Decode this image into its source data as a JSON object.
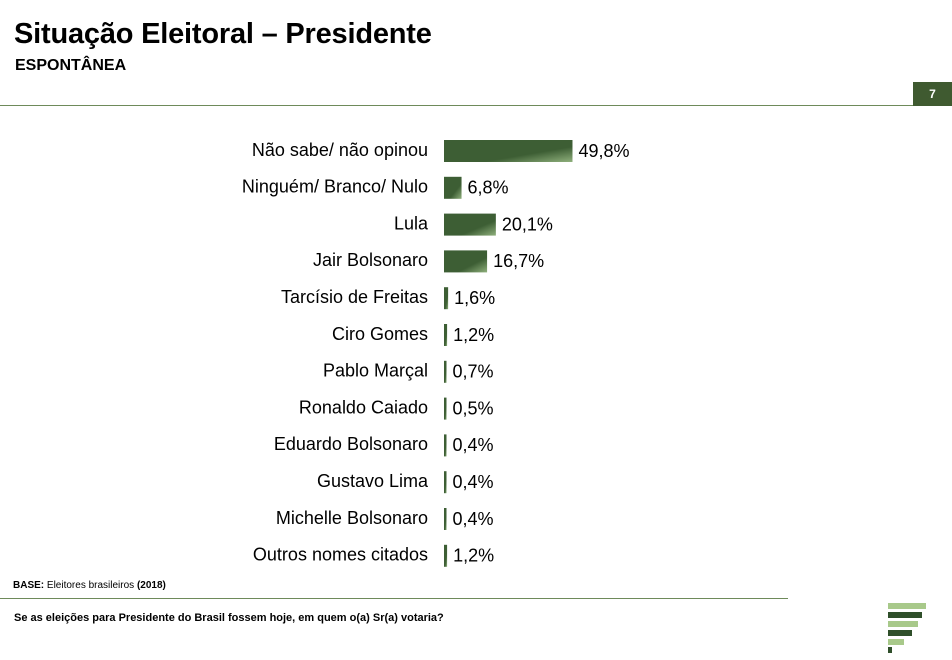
{
  "header": {
    "title": "Situação Eleitoral – Presidente",
    "subtitle": "ESPONTÂNEA",
    "page_number": "7"
  },
  "footer": {
    "base_label": "BASE:",
    "base_text": "Eleitores brasileiros",
    "base_year": "(2018)",
    "question": "Se as eleições para Presidente do Brasil fossem hoje, em quem o(a) Sr(a) votaria?"
  },
  "colors": {
    "bar_dark": "#3d5e34",
    "bar_light": "#8fb07c",
    "rule": "#6e8a5a",
    "badge": "#3f5a30",
    "logo_dark": "#2f4f2a",
    "logo_light": "#a8c98a"
  },
  "logo_icon": "stacked-bars-logo-icon",
  "chart_data": {
    "type": "bar",
    "orientation": "horizontal",
    "title": "",
    "xlabel": "",
    "ylabel": "",
    "xlim": [
      0,
      50
    ],
    "grid": false,
    "legend": "none",
    "categories": [
      "Não sabe/ não opinou",
      "Ninguém/ Branco/ Nulo",
      "Lula",
      "Jair Bolsonaro",
      "Tarcísio de Freitas",
      "Ciro Gomes",
      "Pablo Marçal",
      "Ronaldo Caiado",
      "Eduardo Bolsonaro",
      "Gustavo Lima",
      "Michelle Bolsonaro",
      "Outros nomes citados"
    ],
    "values": [
      49.8,
      6.8,
      20.1,
      16.7,
      1.6,
      1.2,
      0.7,
      0.5,
      0.4,
      0.4,
      0.4,
      1.2
    ],
    "value_labels": [
      "49,8%",
      "6,8%",
      "20,1%",
      "16,7%",
      "1,6%",
      "1,2%",
      "0,7%",
      "0,5%",
      "0,4%",
      "0,4%",
      "0,4%",
      "1,2%"
    ]
  }
}
